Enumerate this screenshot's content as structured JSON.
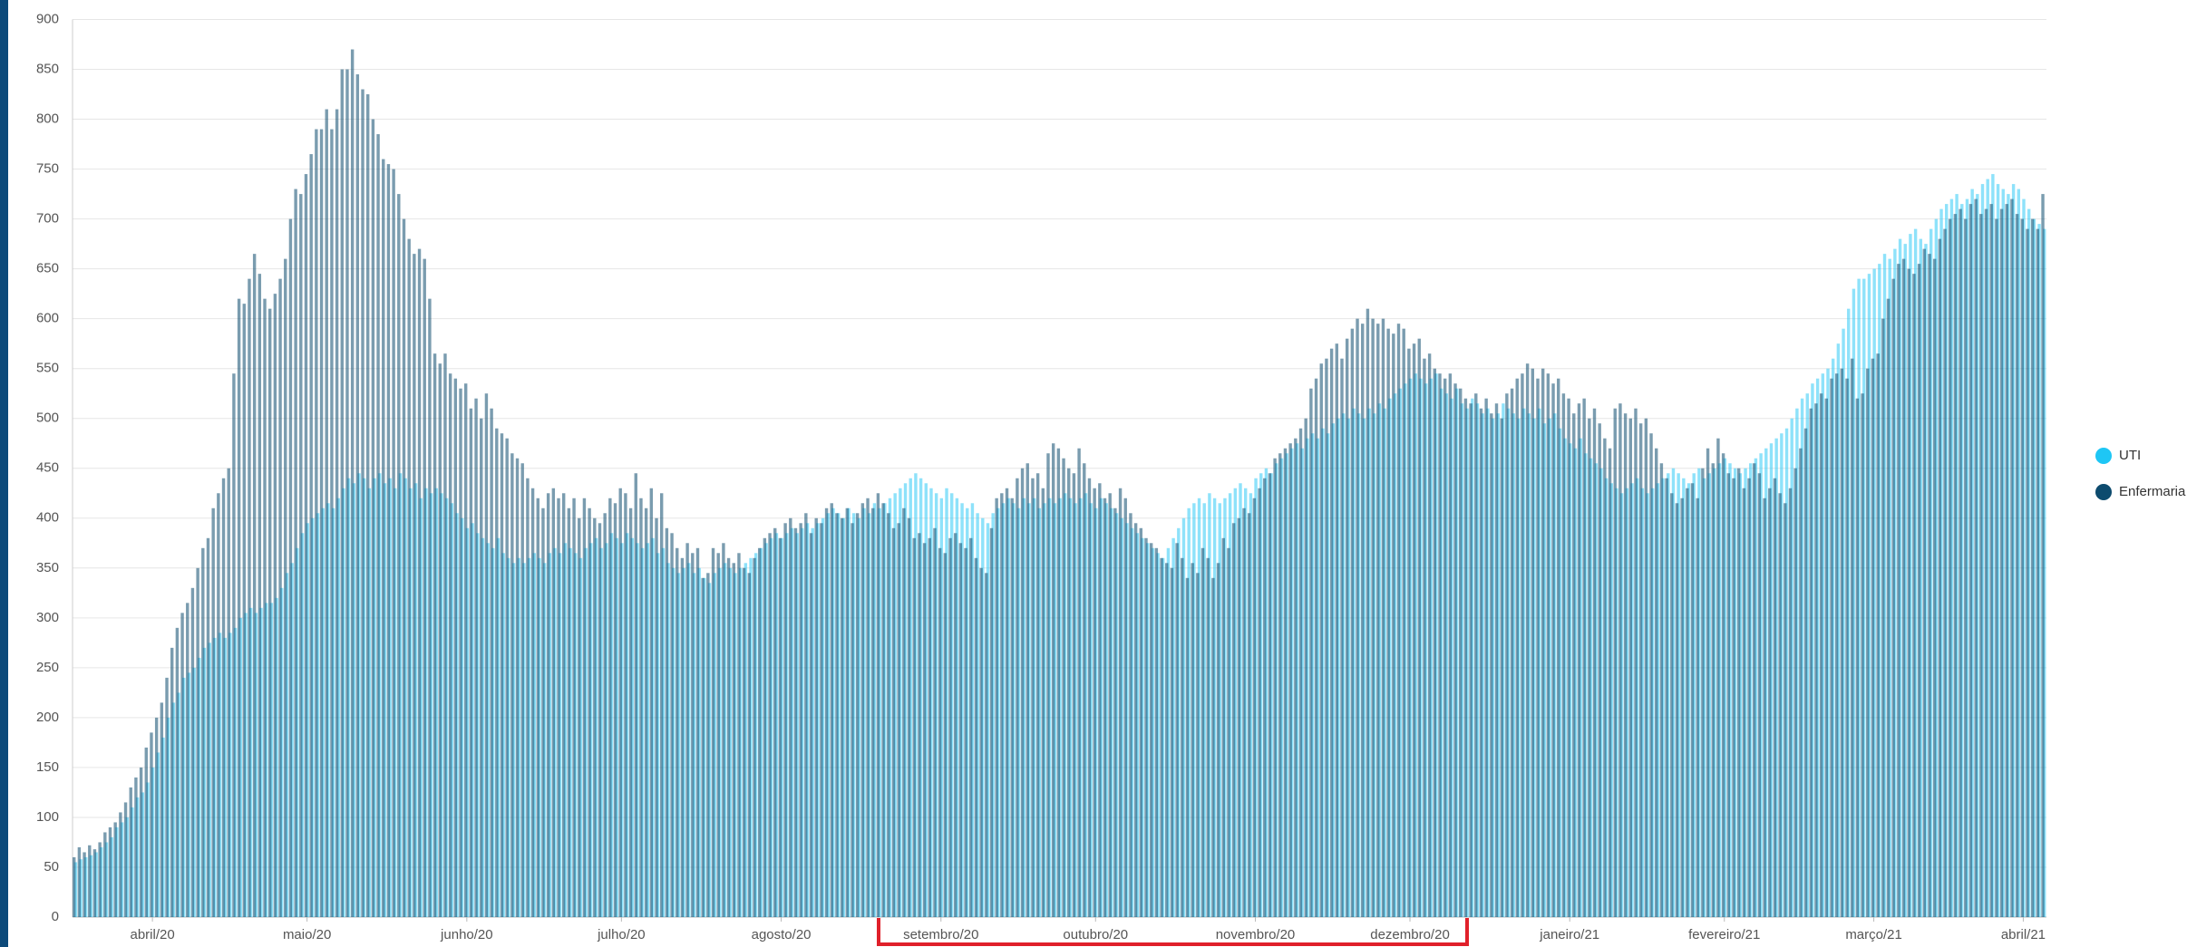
{
  "chart_data": {
    "type": "bar",
    "categories": [
      null,
      null,
      null,
      null,
      null,
      null,
      null,
      null,
      null,
      null,
      null,
      null,
      null,
      null,
      null,
      "abril/20",
      null,
      null,
      null,
      null,
      null,
      null,
      null,
      null,
      null,
      null,
      null,
      null,
      null,
      null,
      null,
      null,
      null,
      null,
      null,
      null,
      null,
      null,
      null,
      null,
      null,
      null,
      null,
      null,
      null,
      "maio/20",
      null,
      null,
      null,
      null,
      null,
      null,
      null,
      null,
      null,
      null,
      null,
      null,
      null,
      null,
      null,
      null,
      null,
      null,
      null,
      null,
      null,
      null,
      null,
      null,
      null,
      null,
      null,
      null,
      null,
      null,
      "junho/20",
      null,
      null,
      null,
      null,
      null,
      null,
      null,
      null,
      null,
      null,
      null,
      null,
      null,
      null,
      null,
      null,
      null,
      null,
      null,
      null,
      null,
      null,
      null,
      null,
      null,
      null,
      null,
      null,
      null,
      "julho/20",
      null,
      null,
      null,
      null,
      null,
      null,
      null,
      null,
      null,
      null,
      null,
      null,
      null,
      null,
      null,
      null,
      null,
      null,
      null,
      null,
      null,
      null,
      null,
      null,
      null,
      null,
      null,
      null,
      null,
      null,
      "agosto/20",
      null,
      null,
      null,
      null,
      null,
      null,
      null,
      null,
      null,
      null,
      null,
      null,
      null,
      null,
      null,
      null,
      null,
      null,
      null,
      null,
      null,
      null,
      null,
      null,
      null,
      null,
      null,
      null,
      null,
      null,
      "setembro/20",
      null,
      null,
      null,
      null,
      null,
      null,
      null,
      null,
      null,
      null,
      null,
      null,
      null,
      null,
      null,
      null,
      null,
      null,
      null,
      null,
      null,
      null,
      null,
      null,
      null,
      null,
      null,
      null,
      null,
      "outubro/20",
      null,
      null,
      null,
      null,
      null,
      null,
      null,
      null,
      null,
      null,
      null,
      null,
      null,
      null,
      null,
      null,
      null,
      null,
      null,
      null,
      null,
      null,
      null,
      null,
      null,
      null,
      null,
      null,
      null,
      null,
      "novembro/20",
      null,
      null,
      null,
      null,
      null,
      null,
      null,
      null,
      null,
      null,
      null,
      null,
      null,
      null,
      null,
      null,
      null,
      null,
      null,
      null,
      null,
      null,
      null,
      null,
      null,
      null,
      null,
      null,
      null,
      "dezembro/20",
      null,
      null,
      null,
      null,
      null,
      null,
      null,
      null,
      null,
      null,
      null,
      null,
      null,
      null,
      null,
      null,
      null,
      null,
      null,
      null,
      null,
      null,
      null,
      null,
      null,
      null,
      null,
      null,
      null,
      null,
      "janeiro/21",
      null,
      null,
      null,
      null,
      null,
      null,
      null,
      null,
      null,
      null,
      null,
      null,
      null,
      null,
      null,
      null,
      null,
      null,
      null,
      null,
      null,
      null,
      null,
      null,
      null,
      null,
      null,
      null,
      null,
      "fevereiro/21",
      null,
      null,
      null,
      null,
      null,
      null,
      null,
      null,
      null,
      null,
      null,
      null,
      null,
      null,
      null,
      null,
      null,
      null,
      null,
      null,
      null,
      null,
      null,
      null,
      null,
      null,
      null,
      null,
      "março/21",
      null,
      null,
      null,
      null,
      null,
      null,
      null,
      null,
      null,
      null,
      null,
      null,
      null,
      null,
      null,
      null,
      null,
      null,
      null,
      null,
      null,
      null,
      null,
      null,
      null,
      null,
      null,
      null,
      "abril/21",
      null,
      null,
      null,
      null
    ],
    "series": [
      {
        "name": "UTI",
        "color": "#1ec6f5",
        "values": [
          55,
          58,
          60,
          62,
          65,
          70,
          75,
          80,
          90,
          95,
          100,
          110,
          120,
          125,
          135,
          150,
          165,
          180,
          200,
          215,
          225,
          240,
          245,
          250,
          260,
          270,
          275,
          280,
          285,
          280,
          285,
          290,
          300,
          305,
          310,
          305,
          310,
          315,
          315,
          320,
          330,
          345,
          355,
          370,
          385,
          395,
          400,
          405,
          410,
          415,
          410,
          420,
          430,
          440,
          435,
          445,
          440,
          430,
          440,
          445,
          435,
          440,
          430,
          445,
          440,
          430,
          435,
          420,
          430,
          425,
          430,
          425,
          420,
          415,
          405,
          400,
          390,
          395,
          385,
          380,
          375,
          370,
          380,
          365,
          360,
          355,
          360,
          355,
          360,
          365,
          360,
          355,
          365,
          370,
          365,
          375,
          370,
          365,
          360,
          370,
          375,
          380,
          370,
          375,
          385,
          380,
          375,
          385,
          380,
          375,
          370,
          375,
          380,
          365,
          370,
          355,
          350,
          345,
          350,
          355,
          345,
          350,
          340,
          335,
          345,
          350,
          355,
          350,
          345,
          350,
          355,
          360,
          365,
          370,
          375,
          380,
          385,
          380,
          385,
          390,
          385,
          390,
          395,
          390,
          395,
          400,
          405,
          410,
          405,
          400,
          410,
          405,
          400,
          410,
          405,
          415,
          410,
          415,
          420,
          425,
          430,
          435,
          440,
          445,
          440,
          435,
          430,
          425,
          420,
          430,
          425,
          420,
          415,
          410,
          415,
          405,
          400,
          395,
          405,
          410,
          415,
          420,
          415,
          410,
          420,
          415,
          420,
          410,
          415,
          420,
          415,
          420,
          425,
          420,
          415,
          420,
          425,
          415,
          410,
          420,
          415,
          410,
          405,
          400,
          395,
          390,
          385,
          380,
          375,
          370,
          365,
          360,
          370,
          380,
          390,
          400,
          410,
          415,
          420,
          415,
          425,
          420,
          415,
          420,
          425,
          430,
          435,
          430,
          425,
          440,
          445,
          450,
          445,
          455,
          460,
          465,
          470,
          475,
          470,
          480,
          485,
          480,
          490,
          485,
          495,
          500,
          505,
          500,
          510,
          505,
          500,
          510,
          505,
          515,
          510,
          520,
          525,
          530,
          535,
          540,
          545,
          540,
          535,
          540,
          545,
          530,
          525,
          520,
          530,
          515,
          510,
          520,
          515,
          505,
          510,
          500,
          505,
          515,
          510,
          505,
          500,
          510,
          505,
          500,
          510,
          495,
          500,
          505,
          490,
          480,
          475,
          470,
          480,
          465,
          460,
          455,
          450,
          440,
          435,
          430,
          425,
          430,
          435,
          440,
          430,
          425,
          430,
          435,
          440,
          445,
          450,
          445,
          440,
          435,
          445,
          450,
          440,
          445,
          450,
          455,
          460,
          455,
          450,
          445,
          450,
          455,
          460,
          465,
          470,
          475,
          480,
          485,
          490,
          500,
          510,
          520,
          525,
          535,
          540,
          545,
          550,
          560,
          575,
          590,
          610,
          630,
          640,
          640,
          645,
          650,
          655,
          665,
          660,
          670,
          680,
          675,
          685,
          690,
          680,
          675,
          690,
          700,
          710,
          715,
          720,
          725,
          715,
          720,
          730,
          725,
          735,
          740,
          745,
          735,
          730,
          725,
          735,
          730,
          720,
          710,
          700,
          695,
          690
        ]
      },
      {
        "name": "Enfermaria",
        "color": "#0d4b6e",
        "values": [
          60,
          70,
          65,
          72,
          68,
          75,
          85,
          90,
          95,
          105,
          115,
          130,
          140,
          150,
          170,
          185,
          200,
          215,
          240,
          270,
          290,
          305,
          315,
          330,
          350,
          370,
          380,
          410,
          425,
          440,
          450,
          545,
          620,
          615,
          640,
          665,
          645,
          620,
          610,
          625,
          640,
          660,
          700,
          730,
          725,
          745,
          765,
          790,
          790,
          810,
          790,
          810,
          850,
          850,
          870,
          845,
          830,
          825,
          800,
          785,
          760,
          755,
          750,
          725,
          700,
          680,
          665,
          670,
          660,
          620,
          565,
          555,
          565,
          545,
          540,
          530,
          535,
          510,
          520,
          500,
          525,
          510,
          490,
          485,
          480,
          465,
          460,
          455,
          440,
          430,
          420,
          410,
          425,
          430,
          420,
          425,
          410,
          420,
          400,
          420,
          410,
          400,
          395,
          405,
          420,
          415,
          430,
          425,
          410,
          445,
          420,
          410,
          430,
          400,
          425,
          390,
          385,
          370,
          360,
          375,
          365,
          370,
          340,
          345,
          370,
          365,
          375,
          360,
          355,
          365,
          350,
          345,
          360,
          370,
          380,
          385,
          390,
          380,
          395,
          400,
          390,
          395,
          405,
          385,
          400,
          395,
          410,
          415,
          405,
          400,
          410,
          395,
          405,
          415,
          420,
          410,
          425,
          415,
          405,
          390,
          395,
          410,
          400,
          380,
          385,
          375,
          380,
          390,
          370,
          365,
          380,
          385,
          375,
          370,
          380,
          360,
          350,
          345,
          390,
          420,
          425,
          430,
          420,
          440,
          450,
          455,
          440,
          445,
          430,
          465,
          475,
          470,
          460,
          450,
          445,
          470,
          455,
          440,
          430,
          435,
          420,
          425,
          410,
          430,
          420,
          405,
          395,
          390,
          380,
          375,
          370,
          360,
          355,
          350,
          375,
          360,
          340,
          355,
          345,
          370,
          360,
          340,
          355,
          380,
          370,
          395,
          400,
          410,
          405,
          420,
          430,
          440,
          445,
          460,
          465,
          470,
          475,
          480,
          490,
          500,
          530,
          540,
          555,
          560,
          570,
          575,
          560,
          580,
          590,
          600,
          595,
          610,
          600,
          595,
          600,
          590,
          585,
          595,
          590,
          570,
          575,
          580,
          560,
          565,
          550,
          545,
          540,
          545,
          535,
          530,
          520,
          515,
          525,
          510,
          520,
          505,
          515,
          500,
          525,
          530,
          540,
          545,
          555,
          550,
          540,
          550,
          545,
          535,
          540,
          525,
          520,
          505,
          515,
          520,
          500,
          510,
          495,
          480,
          470,
          510,
          515,
          505,
          500,
          510,
          495,
          500,
          485,
          470,
          455,
          440,
          425,
          415,
          420,
          430,
          435,
          420,
          450,
          470,
          455,
          480,
          465,
          445,
          440,
          450,
          430,
          440,
          455,
          445,
          420,
          430,
          440,
          425,
          415,
          430,
          450,
          470,
          490,
          510,
          515,
          525,
          520,
          540,
          545,
          550,
          540,
          560,
          520,
          525,
          550,
          560,
          565,
          600,
          620,
          640,
          655,
          660,
          650,
          645,
          655,
          670,
          665,
          660,
          680,
          690,
          700,
          705,
          710,
          700,
          715,
          720,
          705,
          710,
          715,
          700,
          710,
          715,
          720,
          705,
          700,
          690,
          700,
          690,
          725
        ]
      }
    ],
    "ylim": [
      0,
      900
    ],
    "yticks": [
      0,
      50,
      100,
      150,
      200,
      250,
      300,
      350,
      400,
      450,
      500,
      550,
      600,
      650,
      700,
      750,
      800,
      850,
      900
    ],
    "grid": true
  }
}
